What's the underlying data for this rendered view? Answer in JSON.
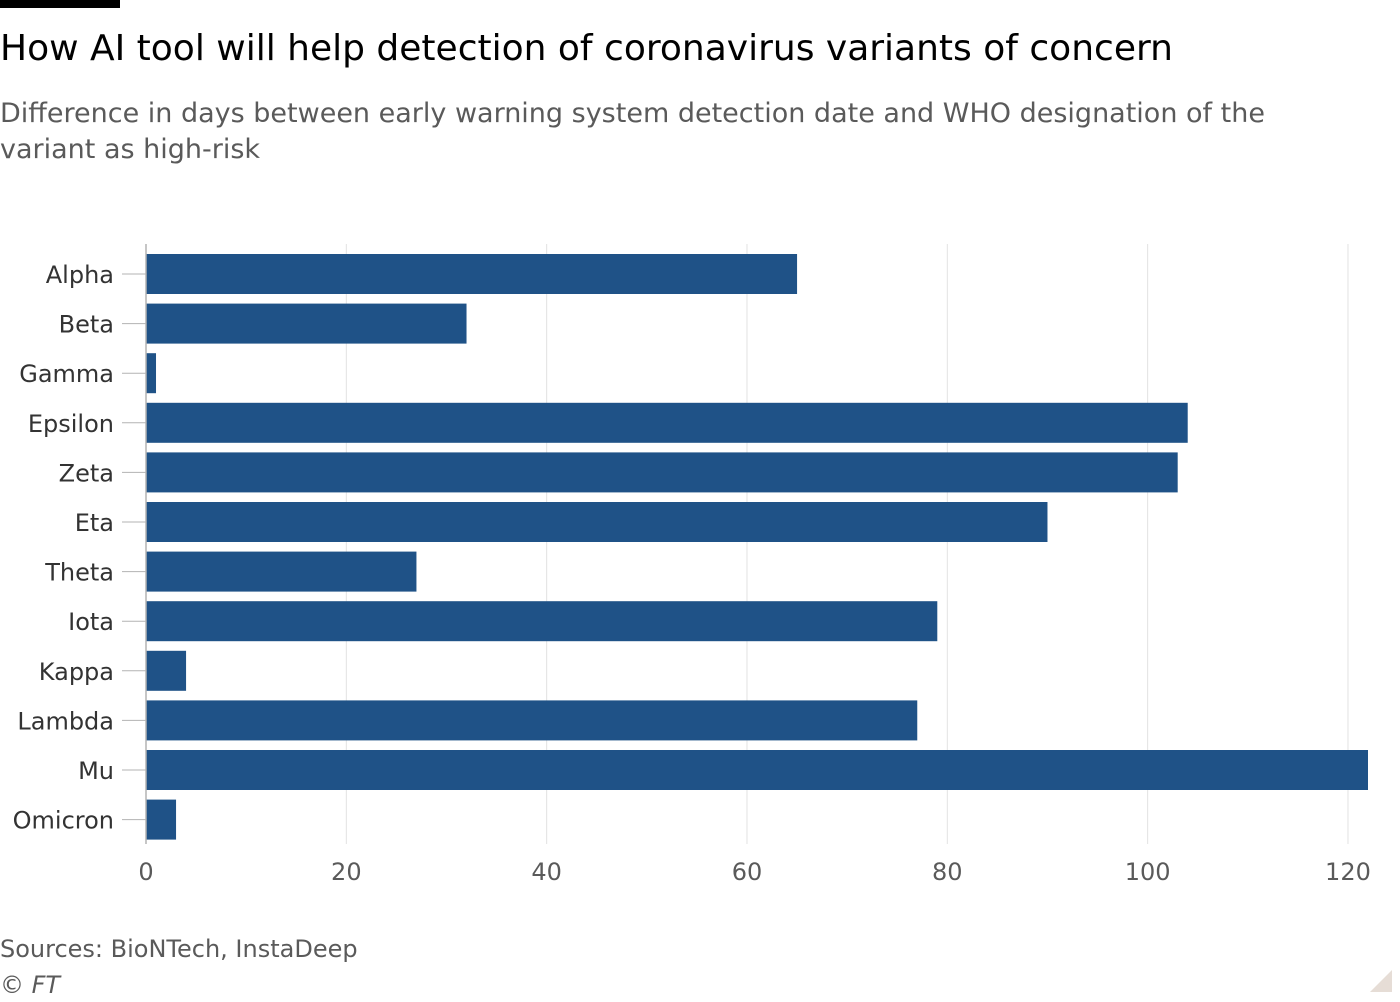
{
  "header": {
    "title": "How AI tool will help detection of coronavirus variants of concern",
    "subtitle": "Difference in days between early warning system detection date and WHO designation of the variant as high-risk"
  },
  "footer": {
    "source": "Sources: BioNTech, InstaDeep",
    "copyright": "© FT"
  },
  "colors": {
    "bar": "#1f5287",
    "grid": "#e2e2e2",
    "axis": "#b3b3b3"
  },
  "chart_data": {
    "type": "bar",
    "orientation": "horizontal",
    "categories": [
      "Alpha",
      "Beta",
      "Gamma",
      "Epsilon",
      "Zeta",
      "Eta",
      "Theta",
      "Iota",
      "Kappa",
      "Lambda",
      "Mu",
      "Omicron"
    ],
    "values": [
      65,
      32,
      1,
      104,
      103,
      90,
      27,
      79,
      4,
      77,
      122,
      3
    ],
    "xlim": [
      0,
      122
    ],
    "xticks": [
      0,
      20,
      40,
      60,
      80,
      100,
      120
    ],
    "xlabel": "",
    "ylabel": "",
    "grid": true
  }
}
